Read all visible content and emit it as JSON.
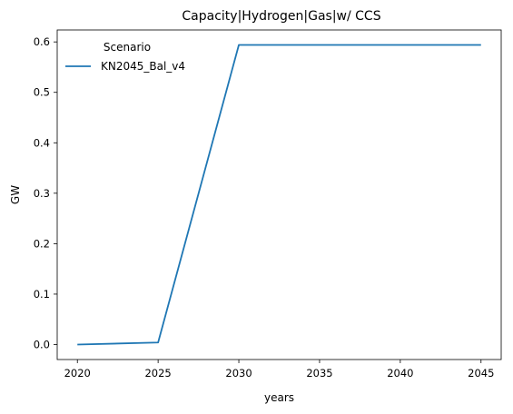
{
  "chart_data": {
    "type": "line",
    "title": "Capacity|Hydrogen|Gas|w/ CCS",
    "xlabel": "years",
    "ylabel": "GW",
    "x": [
      2020,
      2025,
      2030,
      2035,
      2040,
      2045
    ],
    "series": [
      {
        "name": "KN2045_Bal_v4",
        "color": "#1f77b4",
        "values": [
          0.0,
          0.004,
          0.594,
          0.594,
          0.594,
          0.594
        ]
      }
    ],
    "xticks": [
      2020,
      2025,
      2030,
      2035,
      2040,
      2045
    ],
    "yticks": [
      0.0,
      0.1,
      0.2,
      0.3,
      0.4,
      0.5,
      0.6
    ],
    "ytick_labels": [
      "0.0",
      "0.1",
      "0.2",
      "0.3",
      "0.4",
      "0.5",
      "0.6"
    ],
    "xlim": [
      2018.75,
      2046.25
    ],
    "ylim": [
      -0.0297,
      0.6237
    ],
    "grid": false,
    "legend": {
      "title": "Scenario",
      "placement": "top-left"
    }
  }
}
